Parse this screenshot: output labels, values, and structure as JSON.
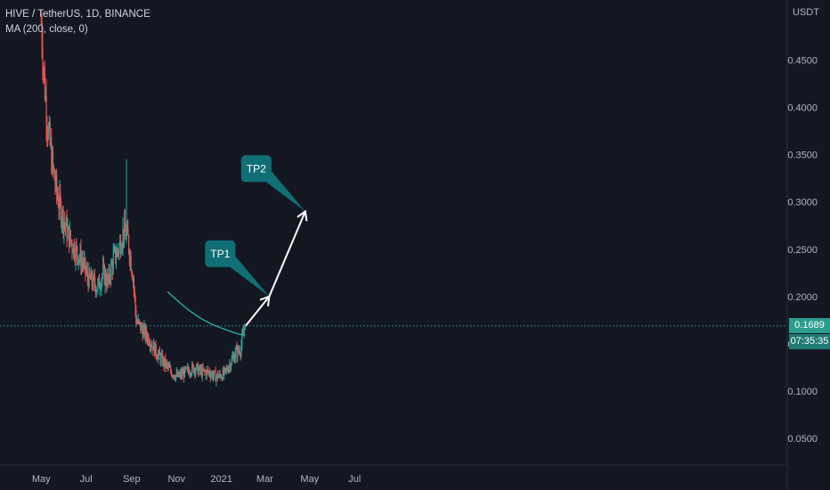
{
  "header": {
    "symbol_line": "HIVE / TetherUS, 1D, BINANCE",
    "indicator_line": "MA (200, close, 0)"
  },
  "price_scale": {
    "unit": "USDT",
    "current_price": "0.1689",
    "countdown": "07:35:35"
  },
  "colors": {
    "background": "#131722",
    "up": "#26a69a",
    "down": "#ef5350",
    "ma": "#2fb7b0",
    "annotation": "#0f6f74",
    "arrow": "#ffffff"
  },
  "chart_data": {
    "type": "candlestick",
    "x_labels": [
      "May",
      "Jul",
      "Sep",
      "Nov",
      "2021",
      "Mar",
      "May",
      "Jul"
    ],
    "y_ticks": [
      "0.4500",
      "0.4000",
      "0.3500",
      "0.3000",
      "0.2500",
      "0.2000",
      "0.1500",
      "0.1000",
      "0.0500"
    ],
    "y_tick_values": [
      0.45,
      0.4,
      0.35,
      0.3,
      0.25,
      0.2,
      0.15,
      0.1,
      0.05
    ],
    "ylim": [
      0.0,
      0.5
    ],
    "xlim": [
      "2020-03-06",
      "2021-08-01"
    ],
    "close_path": [
      [
        "2020-05-01",
        0.49
      ],
      [
        "2020-05-05",
        0.43
      ],
      [
        "2020-05-10",
        0.38
      ],
      [
        "2020-05-16",
        0.34
      ],
      [
        "2020-05-22",
        0.31
      ],
      [
        "2020-05-28",
        0.29
      ],
      [
        "2020-06-05",
        0.27
      ],
      [
        "2020-06-12",
        0.255
      ],
      [
        "2020-06-20",
        0.245
      ],
      [
        "2020-06-27",
        0.235
      ],
      [
        "2020-07-03",
        0.22
      ],
      [
        "2020-07-10",
        0.215
      ],
      [
        "2020-07-17",
        0.21
      ],
      [
        "2020-07-24",
        0.225
      ],
      [
        "2020-07-31",
        0.215
      ],
      [
        "2020-08-07",
        0.24
      ],
      [
        "2020-08-14",
        0.25
      ],
      [
        "2020-08-21",
        0.27
      ],
      [
        "2020-08-27",
        0.26
      ],
      [
        "2020-09-03",
        0.22
      ],
      [
        "2020-09-07",
        0.175
      ],
      [
        "2020-09-15",
        0.165
      ],
      [
        "2020-09-25",
        0.155
      ],
      [
        "2020-10-05",
        0.14
      ],
      [
        "2020-10-15",
        0.13
      ],
      [
        "2020-10-25",
        0.12
      ],
      [
        "2020-11-03",
        0.115
      ],
      [
        "2020-11-13",
        0.12
      ],
      [
        "2020-11-25",
        0.125
      ],
      [
        "2020-12-05",
        0.12
      ],
      [
        "2020-12-15",
        0.12
      ],
      [
        "2020-12-25",
        0.115
      ],
      [
        "2021-01-05",
        0.118
      ],
      [
        "2021-01-12",
        0.128
      ],
      [
        "2021-01-20",
        0.14
      ],
      [
        "2021-01-27",
        0.145
      ],
      [
        "2021-02-02",
        0.1689
      ]
    ],
    "spikes": [
      {
        "date": "2020-08-25",
        "high": 0.345
      },
      {
        "date": "2020-07-26",
        "high": 0.235
      },
      {
        "date": "2020-05-10",
        "high": 0.38
      }
    ],
    "ma_series": [
      [
        "2020-10-20",
        0.205
      ],
      [
        "2020-11-10",
        0.19
      ],
      [
        "2020-12-01",
        0.178
      ],
      [
        "2020-12-20",
        0.17
      ],
      [
        "2021-01-10",
        0.164
      ],
      [
        "2021-01-25",
        0.16
      ],
      [
        "2021-02-02",
        0.159
      ]
    ],
    "current_price": 0.1689,
    "projection": [
      [
        "2021-02-03",
        0.1689
      ],
      [
        "2021-03-07",
        0.2
      ],
      [
        "2021-04-25",
        0.29
      ]
    ],
    "annotations": [
      {
        "label": "TP1",
        "date": "2021-03-07",
        "price": 0.2
      },
      {
        "label": "TP2",
        "date": "2021-04-25",
        "price": 0.29
      }
    ]
  }
}
